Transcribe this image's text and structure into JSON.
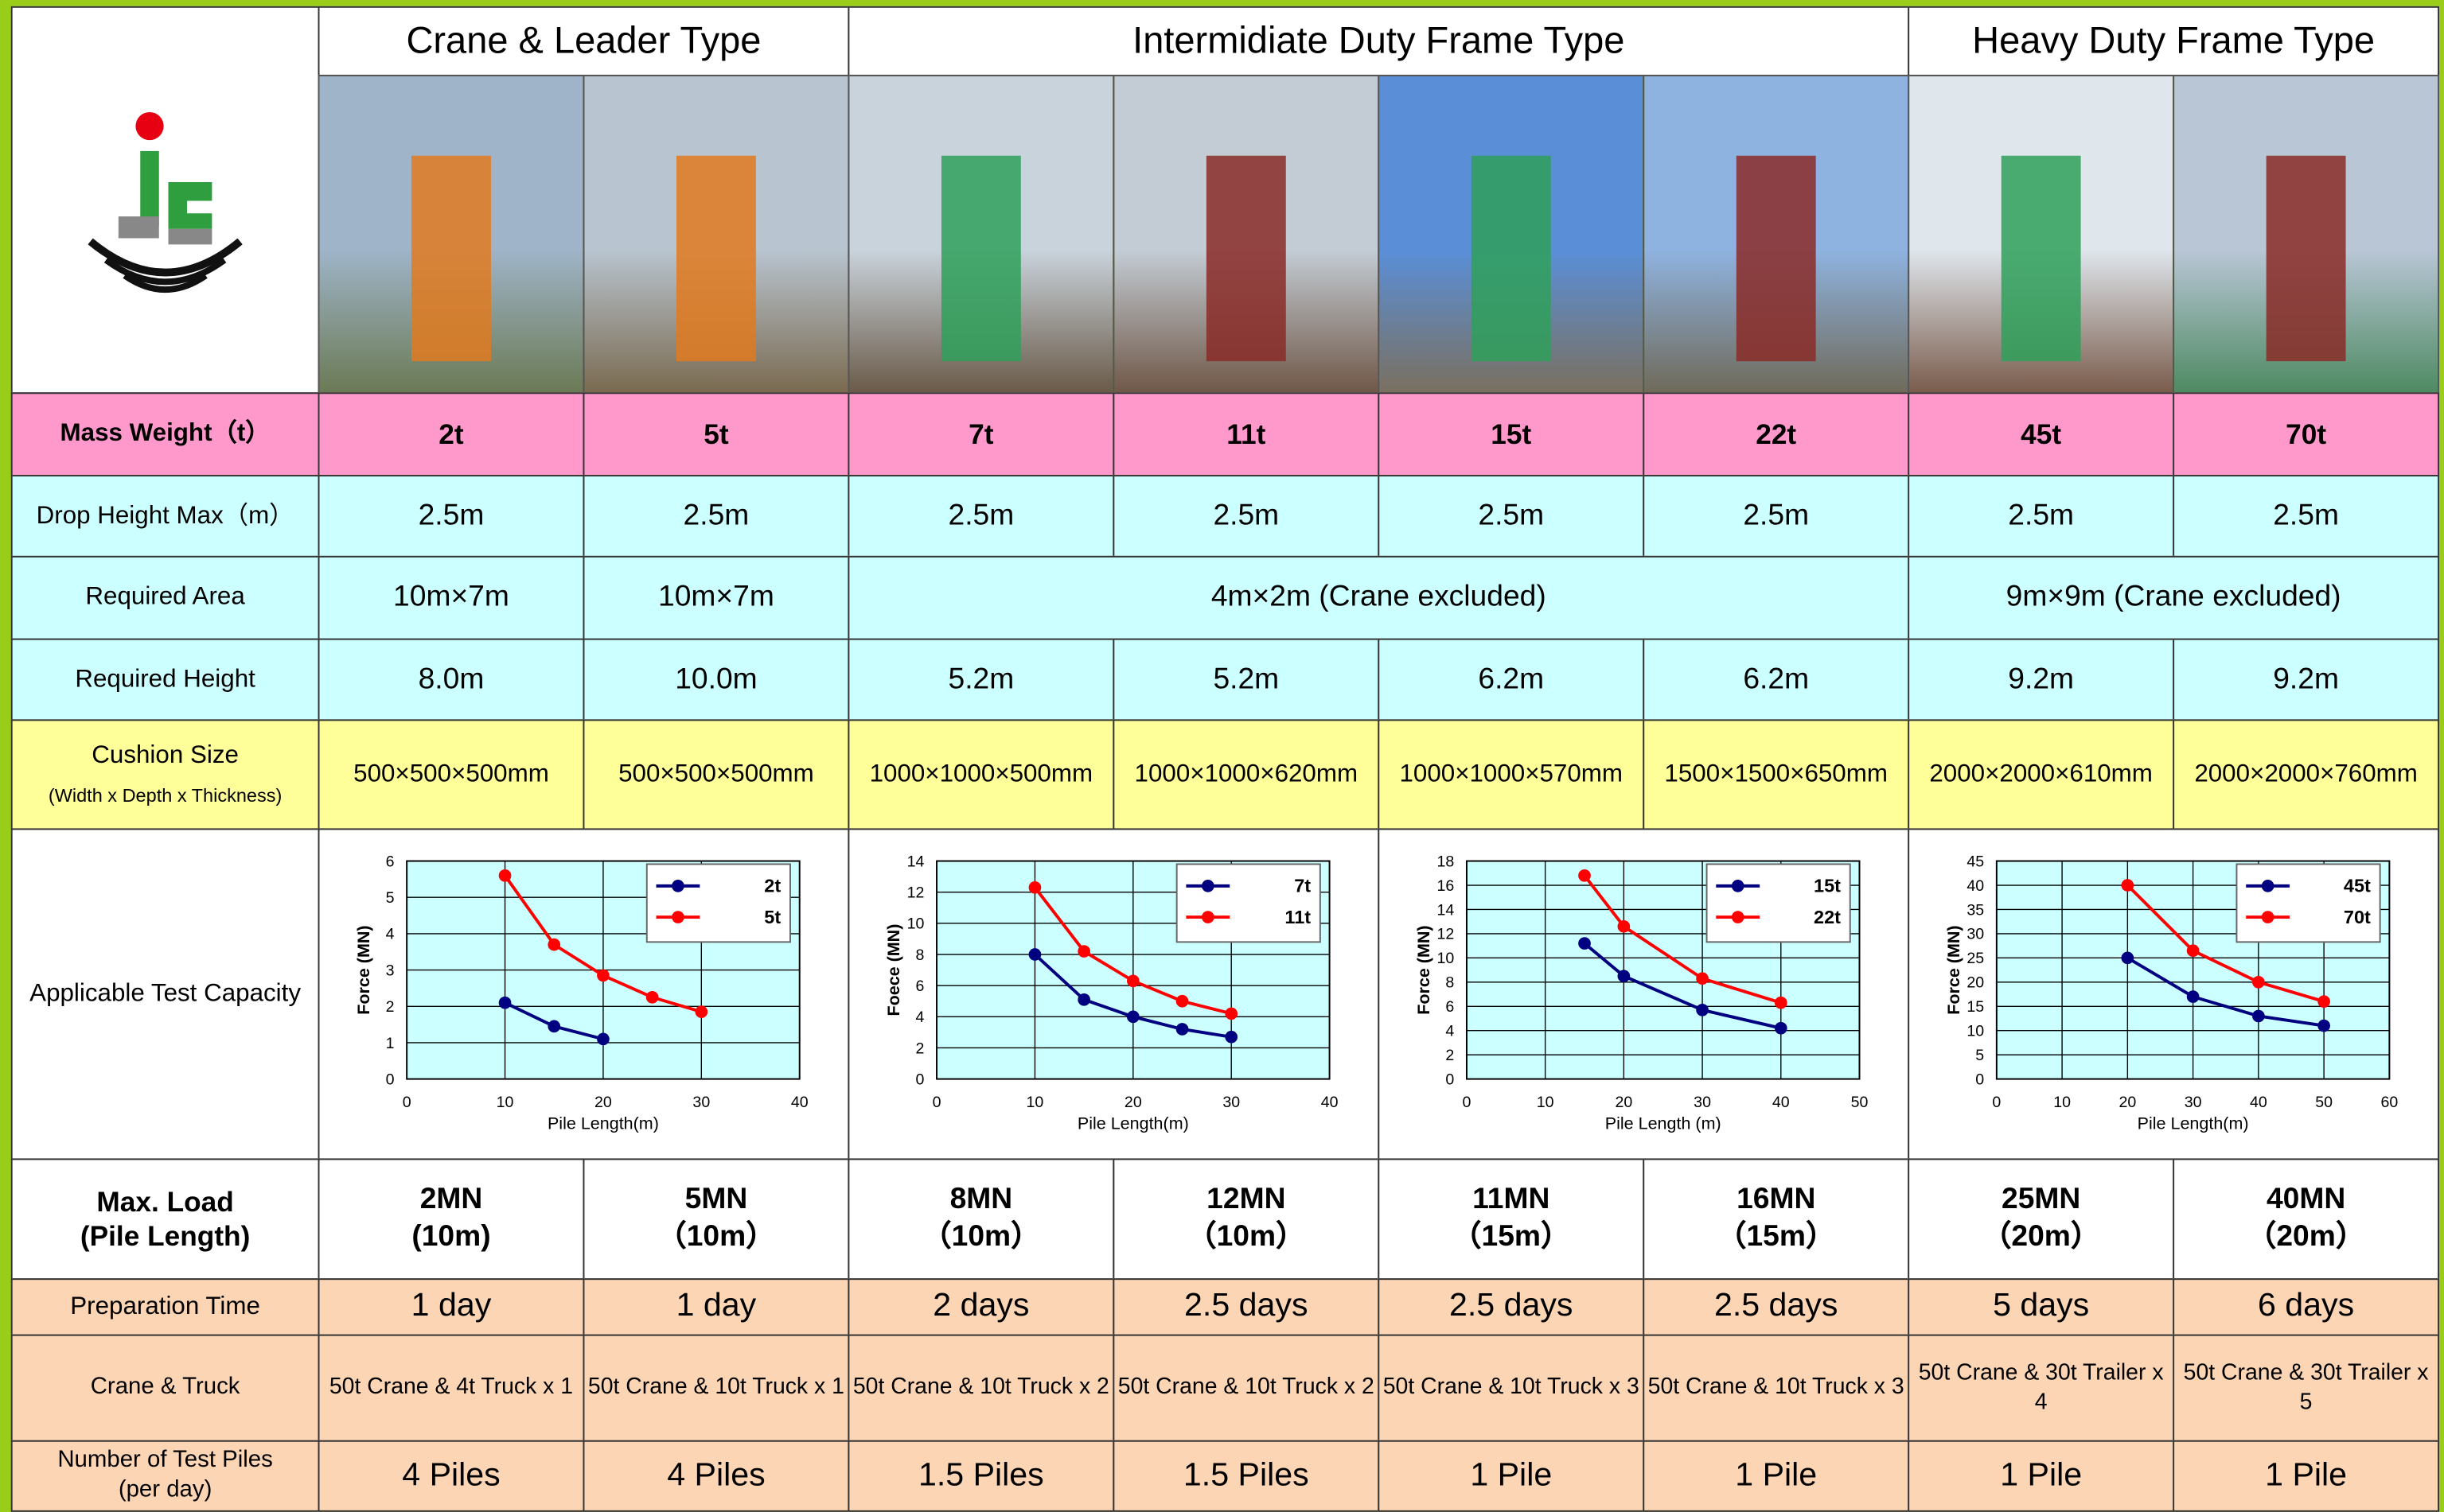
{
  "table": {
    "header_groups": [
      "Crane & Leader Type",
      "Intermidiate Duty Frame Type",
      "Heavy Duty Frame Type"
    ],
    "rows": [
      {
        "label": "Mass Weight（t）",
        "cells": [
          "2t",
          "5t",
          "7t",
          "11t",
          "15t",
          "22t",
          "45t",
          "70t"
        ]
      },
      {
        "label": "Drop Height Max（m）",
        "cells": [
          "2.5m",
          "2.5m",
          "2.5m",
          "2.5m",
          "2.5m",
          "2.5m",
          "2.5m",
          "2.5m"
        ]
      },
      {
        "label": "Required Area",
        "cells": [
          "10m×7m",
          "10m×7m",
          "4m×2m (Crane excluded)",
          "9m×9m (Crane excluded)"
        ]
      },
      {
        "label": "Required Height",
        "cells": [
          "8.0m",
          "10.0m",
          "5.2m",
          "5.2m",
          "6.2m",
          "6.2m",
          "9.2m",
          "9.2m"
        ]
      },
      {
        "label": [
          "Cushion Size",
          "(Width x Depth x Thickness)"
        ],
        "cells": [
          "500×500×500mm",
          "500×500×500mm",
          "1000×1000×500mm",
          "1000×1000×620mm",
          "1000×1000×570mm",
          "1500×1500×650mm",
          "2000×2000×610mm",
          "2000×2000×760mm"
        ]
      },
      {
        "label": "Applicable Test Capacity"
      },
      {
        "label": [
          "Max. Load",
          "(Pile Length)"
        ],
        "cells": [
          [
            "2MN",
            "(10m)"
          ],
          [
            "5MN",
            "（10m）"
          ],
          [
            "8MN",
            "（10m）"
          ],
          [
            "12MN",
            "（10m）"
          ],
          [
            "11MN",
            "（15m）"
          ],
          [
            "16MN",
            "（15m）"
          ],
          [
            "25MN",
            "（20m）"
          ],
          [
            "40MN",
            "（20m）"
          ]
        ]
      },
      {
        "label": "Preparation Time",
        "cells": [
          "1 day",
          "1 day",
          "2 days",
          "2.5 days",
          "2.5 days",
          "2.5 days",
          "5 days",
          "6 days"
        ]
      },
      {
        "label": "Crane & Truck",
        "cells": [
          "50t Crane & 4t Truck x 1",
          "50t Crane & 10t Truck x 1",
          "50t Crane & 10t Truck x 2",
          "50t Crane & 10t Truck x 2",
          "50t Crane & 10t Truck x 3",
          "50t Crane & 10t Truck x 3",
          "50t Crane & 30t Trailer x 4",
          "50t Crane & 30t Trailer x 5"
        ]
      },
      {
        "label": [
          "Number of Test Piles",
          "(per day)"
        ],
        "cells": [
          "4 Piles",
          "4 Piles",
          "1.5 Piles",
          "1.5 Piles",
          "1 Pile",
          "1 Pile",
          "1 Pile",
          "1 Pile"
        ]
      }
    ]
  },
  "chart_data": [
    {
      "type": "line",
      "x_label": "Pile Length(m)",
      "y_label": "Force (MN)",
      "xlim": [
        0,
        40
      ],
      "xticks": [
        0,
        10,
        20,
        30,
        40
      ],
      "ylim": [
        0,
        6
      ],
      "yticks": [
        0,
        1,
        2,
        3,
        4,
        5,
        6
      ],
      "grid": true,
      "legend": "upper right",
      "series": [
        {
          "name": "2t",
          "color": "#000080",
          "x": [
            10,
            15,
            20
          ],
          "values": [
            2.1,
            1.45,
            1.1
          ]
        },
        {
          "name": "5t",
          "color": "#ff0000",
          "x": [
            10,
            15,
            20,
            25,
            30
          ],
          "values": [
            5.6,
            3.7,
            2.85,
            2.25,
            1.85
          ]
        }
      ]
    },
    {
      "type": "line",
      "x_label": "Pile Length(m)",
      "y_label": "Foece (MN)",
      "xlim": [
        0,
        40
      ],
      "xticks": [
        0,
        10,
        20,
        30,
        40
      ],
      "ylim": [
        0,
        14
      ],
      "yticks": [
        0,
        2,
        4,
        6,
        8,
        10,
        12,
        14
      ],
      "grid": true,
      "legend": "upper right",
      "series": [
        {
          "name": "7t",
          "color": "#000080",
          "x": [
            10,
            15,
            20,
            25,
            30
          ],
          "values": [
            8,
            5.1,
            4,
            3.2,
            2.7
          ]
        },
        {
          "name": "11t",
          "color": "#ff0000",
          "x": [
            10,
            15,
            20,
            25,
            30
          ],
          "values": [
            12.3,
            8.2,
            6.3,
            5,
            4.2
          ]
        }
      ]
    },
    {
      "type": "line",
      "x_label": "Pile Length (m)",
      "y_label": "Force (MN)",
      "xlim": [
        0,
        50
      ],
      "xticks": [
        0,
        10,
        20,
        30,
        40,
        50
      ],
      "ylim": [
        0,
        18
      ],
      "yticks": [
        0,
        2,
        4,
        6,
        8,
        10,
        12,
        14,
        16,
        18
      ],
      "grid": true,
      "legend": "upper right",
      "series": [
        {
          "name": "15t",
          "color": "#000080",
          "x": [
            15,
            20,
            30,
            40
          ],
          "values": [
            11.2,
            8.5,
            5.7,
            4.2
          ]
        },
        {
          "name": "22t",
          "color": "#ff0000",
          "x": [
            15,
            20,
            30,
            40
          ],
          "values": [
            16.8,
            12.6,
            8.3,
            6.3
          ]
        }
      ]
    },
    {
      "type": "line",
      "x_label": "Pile Length(m)",
      "y_label": "Force (MN)",
      "xlim": [
        0,
        60
      ],
      "xticks": [
        0,
        10,
        20,
        30,
        40,
        50,
        60
      ],
      "ylim": [
        0,
        45
      ],
      "yticks": [
        0,
        5,
        10,
        15,
        20,
        25,
        30,
        35,
        40,
        45
      ],
      "grid": true,
      "legend": "upper right",
      "series": [
        {
          "name": "45t",
          "color": "#000080",
          "x": [
            20,
            30,
            40,
            50
          ],
          "values": [
            25,
            17,
            13,
            11
          ]
        },
        {
          "name": "70t",
          "color": "#ff0000",
          "x": [
            20,
            30,
            40,
            50
          ],
          "values": [
            40,
            26.5,
            20,
            16
          ]
        }
      ]
    }
  ]
}
